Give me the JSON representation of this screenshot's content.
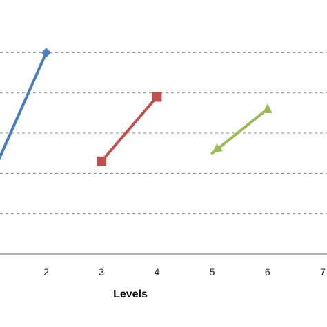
{
  "chart_data": {
    "type": "line",
    "title": "",
    "xlabel": "Levels",
    "ylabel": "",
    "x_ticks": [
      "2",
      "3",
      "4",
      "5",
      "6",
      "7"
    ],
    "xlim": [
      1.15,
      7.0
    ],
    "ylim": [
      0,
      6
    ],
    "grid": true,
    "series": [
      {
        "color": "#4a7ebb",
        "marker": "diamond",
        "arrow": "none",
        "x": [
          1.0,
          2.0
        ],
        "y": [
          1.9,
          5.0
        ]
      },
      {
        "color": "#c0504d",
        "marker": "square",
        "arrow": "none",
        "x": [
          3.0,
          4.0
        ],
        "y": [
          2.3,
          3.9
        ]
      },
      {
        "color": "#9bbb59",
        "marker": "triangle",
        "arrow": "start",
        "x": [
          5.0,
          6.0
        ],
        "y": [
          2.5,
          3.6
        ]
      }
    ]
  }
}
